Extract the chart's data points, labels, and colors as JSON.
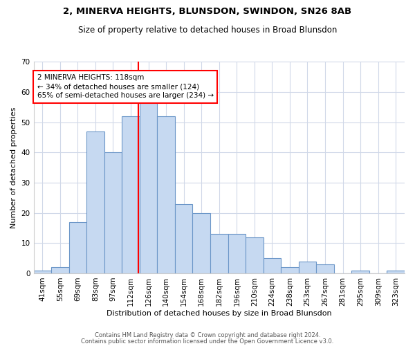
{
  "title1": "2, MINERVA HEIGHTS, BLUNSDON, SWINDON, SN26 8AB",
  "title2": "Size of property relative to detached houses in Broad Blunsdon",
  "xlabel": "Distribution of detached houses by size in Broad Blunsdon",
  "ylabel": "Number of detached properties",
  "bar_labels": [
    "41sqm",
    "55sqm",
    "69sqm",
    "83sqm",
    "97sqm",
    "112sqm",
    "126sqm",
    "140sqm",
    "154sqm",
    "168sqm",
    "182sqm",
    "196sqm",
    "210sqm",
    "224sqm",
    "238sqm",
    "253sqm",
    "267sqm",
    "281sqm",
    "295sqm",
    "309sqm",
    "323sqm"
  ],
  "bar_values": [
    1,
    2,
    17,
    47,
    40,
    52,
    60,
    52,
    23,
    20,
    13,
    13,
    12,
    5,
    2,
    4,
    3,
    0,
    1,
    0,
    1
  ],
  "bar_color": "#c6d9f1",
  "bar_edge_color": "#6b96c8",
  "annotation_box_text": "2 MINERVA HEIGHTS: 118sqm\n← 34% of detached houses are smaller (124)\n65% of semi-detached houses are larger (234) →",
  "footer_line1": "Contains HM Land Registry data © Crown copyright and database right 2024.",
  "footer_line2": "Contains public sector information licensed under the Open Government Licence v3.0.",
  "ylim": [
    0,
    70
  ],
  "yticks": [
    0,
    10,
    20,
    30,
    40,
    50,
    60,
    70
  ],
  "grid_color": "#d0d8e8",
  "background_color": "#ffffff",
  "title1_fontsize": 9.5,
  "title2_fontsize": 8.5,
  "ylabel_fontsize": 8,
  "xlabel_fontsize": 8,
  "tick_fontsize": 7.5,
  "ann_fontsize": 7.5,
  "footer_fontsize": 6.0
}
